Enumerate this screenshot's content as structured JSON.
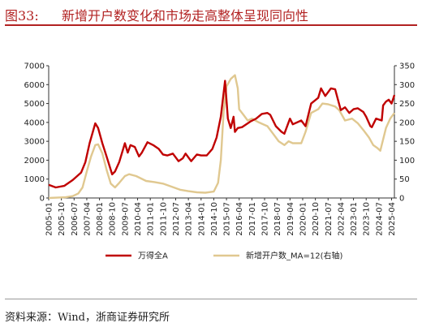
{
  "header": {
    "figure_number": "图33:",
    "title": "新增开户数变化和市场走高整体呈现同向性"
  },
  "footer": {
    "source": "资料来源：Wind，浙商证券研究所"
  },
  "chart_data": {
    "type": "line",
    "title": "新增开户数变化和市场走高整体呈现同向性",
    "xlabel": "",
    "ylabel_left": "",
    "ylabel_right": "",
    "x_range": [
      "2005-01",
      "2025-06"
    ],
    "ylim_left": [
      0,
      7000
    ],
    "ylim_right": [
      0,
      350
    ],
    "yticks_left": [
      "0",
      "1000",
      "2000",
      "3000",
      "4000",
      "5000",
      "6000",
      "7000"
    ],
    "yticks_right": [
      "0",
      "50",
      "100",
      "150",
      "200",
      "250",
      "300",
      "350"
    ],
    "xticks": [
      "2005-01",
      "2005-10",
      "2006-07",
      "2007-04",
      "2008-01",
      "2008-10",
      "2009-07",
      "2010-04",
      "2011-01",
      "2011-10",
      "2012-07",
      "2013-04",
      "2014-01",
      "2014-10",
      "2015-07",
      "2016-04",
      "2017-01",
      "2017-10",
      "2018-07",
      "2019-04",
      "2020-01",
      "2020-10",
      "2021-07",
      "2022-04",
      "2023-01",
      "2023-10",
      "2024-07",
      "2025-04"
    ],
    "legend_position": "bottom",
    "grid": false,
    "series": [
      {
        "name": "万得全A",
        "axis": "left",
        "color": "#c00000",
        "points": [
          [
            "2005-01",
            700
          ],
          [
            "2005-06",
            560
          ],
          [
            "2005-12",
            640
          ],
          [
            "2006-06",
            950
          ],
          [
            "2006-12",
            1350
          ],
          [
            "2007-03",
            1900
          ],
          [
            "2007-06",
            2900
          ],
          [
            "2007-10",
            3950
          ],
          [
            "2007-12",
            3700
          ],
          [
            "2008-03",
            2900
          ],
          [
            "2008-06",
            2200
          ],
          [
            "2008-10",
            1250
          ],
          [
            "2008-12",
            1400
          ],
          [
            "2009-03",
            1900
          ],
          [
            "2009-07",
            2900
          ],
          [
            "2009-09",
            2400
          ],
          [
            "2009-11",
            2800
          ],
          [
            "2010-02",
            2700
          ],
          [
            "2010-05",
            2200
          ],
          [
            "2010-07",
            2400
          ],
          [
            "2010-11",
            2950
          ],
          [
            "2011-03",
            2800
          ],
          [
            "2011-07",
            2600
          ],
          [
            "2011-10",
            2300
          ],
          [
            "2012-01",
            2250
          ],
          [
            "2012-05",
            2350
          ],
          [
            "2012-09",
            1950
          ],
          [
            "2012-12",
            2100
          ],
          [
            "2013-02",
            2350
          ],
          [
            "2013-06",
            1950
          ],
          [
            "2013-10",
            2300
          ],
          [
            "2014-01",
            2250
          ],
          [
            "2014-05",
            2250
          ],
          [
            "2014-09",
            2600
          ],
          [
            "2014-12",
            3200
          ],
          [
            "2015-03",
            4300
          ],
          [
            "2015-06",
            6200
          ],
          [
            "2015-08",
            4200
          ],
          [
            "2015-10",
            3700
          ],
          [
            "2015-12",
            4300
          ],
          [
            "2016-01",
            3500
          ],
          [
            "2016-03",
            3700
          ],
          [
            "2016-06",
            3750
          ],
          [
            "2016-12",
            4050
          ],
          [
            "2017-04",
            4200
          ],
          [
            "2017-08",
            4450
          ],
          [
            "2017-12",
            4500
          ],
          [
            "2018-02",
            4400
          ],
          [
            "2018-06",
            3800
          ],
          [
            "2018-10",
            3500
          ],
          [
            "2018-12",
            3400
          ],
          [
            "2019-04",
            4200
          ],
          [
            "2019-06",
            3900
          ],
          [
            "2019-12",
            4100
          ],
          [
            "2020-03",
            3800
          ],
          [
            "2020-07",
            5000
          ],
          [
            "2020-12",
            5300
          ],
          [
            "2021-02",
            5800
          ],
          [
            "2021-05",
            5400
          ],
          [
            "2021-09",
            5800
          ],
          [
            "2021-12",
            5750
          ],
          [
            "2022-04",
            4650
          ],
          [
            "2022-07",
            4800
          ],
          [
            "2022-10",
            4500
          ],
          [
            "2023-01",
            4700
          ],
          [
            "2023-04",
            4750
          ],
          [
            "2023-08",
            4550
          ],
          [
            "2023-10",
            4300
          ],
          [
            "2024-01",
            3800
          ],
          [
            "2024-02",
            3750
          ],
          [
            "2024-05",
            4200
          ],
          [
            "2024-09",
            4100
          ],
          [
            "2024-10",
            4900
          ],
          [
            "2024-12",
            5100
          ],
          [
            "2025-02",
            5200
          ],
          [
            "2025-04",
            5000
          ],
          [
            "2025-06",
            5450
          ]
        ]
      },
      {
        "name": "新增开户数_MA=12(右轴)",
        "axis": "right",
        "color": "#e0c890",
        "points": [
          [
            "2005-01",
            0
          ],
          [
            "2006-01",
            2
          ],
          [
            "2006-06",
            5
          ],
          [
            "2006-10",
            12
          ],
          [
            "2007-01",
            28
          ],
          [
            "2007-04",
            70
          ],
          [
            "2007-07",
            110
          ],
          [
            "2007-10",
            140
          ],
          [
            "2007-12",
            142
          ],
          [
            "2008-03",
            118
          ],
          [
            "2008-06",
            75
          ],
          [
            "2008-09",
            38
          ],
          [
            "2008-12",
            28
          ],
          [
            "2009-03",
            40
          ],
          [
            "2009-07",
            58
          ],
          [
            "2009-10",
            63
          ],
          [
            "2010-03",
            58
          ],
          [
            "2010-10",
            45
          ],
          [
            "2011-04",
            42
          ],
          [
            "2011-10",
            38
          ],
          [
            "2012-04",
            30
          ],
          [
            "2012-10",
            22
          ],
          [
            "2013-04",
            18
          ],
          [
            "2013-10",
            15
          ],
          [
            "2014-04",
            14
          ],
          [
            "2014-10",
            17
          ],
          [
            "2015-01",
            40
          ],
          [
            "2015-03",
            100
          ],
          [
            "2015-05",
            230
          ],
          [
            "2015-07",
            295
          ],
          [
            "2015-10",
            315
          ],
          [
            "2016-01",
            325
          ],
          [
            "2016-03",
            290
          ],
          [
            "2016-04",
            235
          ],
          [
            "2016-07",
            220
          ],
          [
            "2016-10",
            205
          ],
          [
            "2017-01",
            210
          ],
          [
            "2017-06",
            200
          ],
          [
            "2017-12",
            190
          ],
          [
            "2018-04",
            170
          ],
          [
            "2018-08",
            150
          ],
          [
            "2018-12",
            140
          ],
          [
            "2019-03",
            150
          ],
          [
            "2019-06",
            145
          ],
          [
            "2019-12",
            145
          ],
          [
            "2020-03",
            175
          ],
          [
            "2020-07",
            225
          ],
          [
            "2020-12",
            235
          ],
          [
            "2021-03",
            250
          ],
          [
            "2021-07",
            248
          ],
          [
            "2021-12",
            242
          ],
          [
            "2022-03",
            232
          ],
          [
            "2022-07",
            205
          ],
          [
            "2022-12",
            210
          ],
          [
            "2023-04",
            198
          ],
          [
            "2023-08",
            180
          ],
          [
            "2023-12",
            160
          ],
          [
            "2024-03",
            140
          ],
          [
            "2024-06",
            132
          ],
          [
            "2024-08",
            125
          ],
          [
            "2024-10",
            155
          ],
          [
            "2024-12",
            185
          ],
          [
            "2025-03",
            210
          ],
          [
            "2025-06",
            225
          ]
        ]
      }
    ]
  }
}
